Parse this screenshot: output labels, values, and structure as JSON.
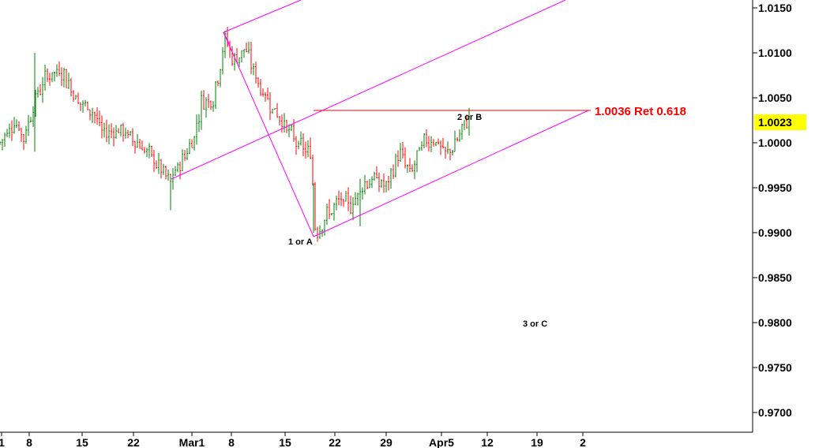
{
  "chart_data": {
    "type": "ohlc",
    "y_axis": {
      "position": "right",
      "ylim": [
        0.9677,
        1.0167
      ],
      "ticks": [
        1.015,
        1.01,
        1.005,
        1.0,
        0.995,
        0.99,
        0.985,
        0.98,
        0.975,
        0.97
      ],
      "tick_labels": [
        "1.0150",
        "1.0100",
        "1.0050",
        "1.0000",
        "0.9950",
        "0.9900",
        "0.9850",
        "0.9800",
        "0.9750",
        "0.9700"
      ]
    },
    "x_axis": {
      "tick_labels": [
        "1",
        "8",
        "15",
        "22",
        "Mar1",
        "8",
        "15",
        "22",
        "29",
        "Apr5",
        "12",
        "19",
        "2"
      ]
    },
    "last_price": {
      "value": 1.0023,
      "label": "1.0023",
      "highlight_color": "#ffff00"
    },
    "retracement": {
      "value": 1.0036,
      "label": "1.0036 Ret 0.618",
      "color": "#ff0000"
    },
    "wave_labels": [
      {
        "text": "1 or A",
        "x_date": "Mar 19",
        "y": 0.9893
      },
      {
        "text": "2 or B",
        "x_date": "Apr 8",
        "y": 1.003
      },
      {
        "text": "3 or C",
        "x_date": "Apr 17",
        "y": 0.9799
      }
    ],
    "colors": {
      "up": "#008000",
      "down": "#ff0000",
      "channel": "#ff00ff",
      "retracement": "#ff0000",
      "axis": "#000000"
    },
    "grid": false,
    "legend": "none",
    "bars_description": "Hourly EUR/CHF-style price bars: range ~0.9990-1.0097 in early Feb, dip to ~0.9928 near late Feb, rally to ~1.0121 at Mar 7, decline to ~0.9896 on Mar 19, recovery channel up to ~1.0028 by Apr 9."
  }
}
